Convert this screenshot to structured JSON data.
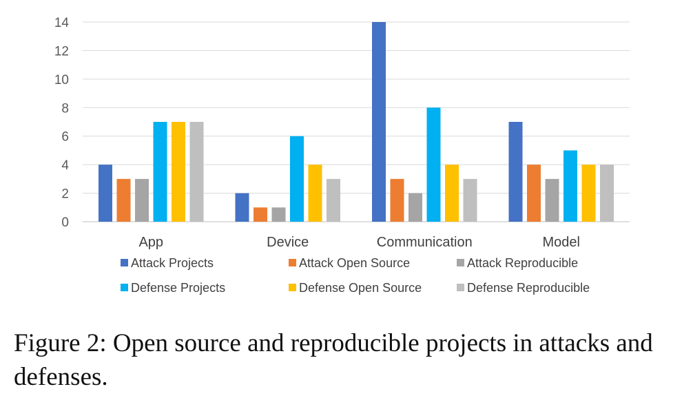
{
  "chart_data": {
    "type": "bar",
    "categories": [
      "App",
      "Device",
      "Communication",
      "Model"
    ],
    "series": [
      {
        "name": "Attack Projects",
        "color": "#4472C4",
        "values": [
          4,
          2,
          14,
          7
        ]
      },
      {
        "name": "Attack Open Source",
        "color": "#ED7D31",
        "values": [
          3,
          1,
          3,
          4
        ]
      },
      {
        "name": "Attack Reproducible",
        "color": "#A5A5A5",
        "values": [
          3,
          1,
          2,
          3
        ]
      },
      {
        "name": "Defense Projects",
        "color": "#00B0F0",
        "values": [
          7,
          6,
          8,
          5
        ]
      },
      {
        "name": "Defense Open Source",
        "color": "#FFC000",
        "values": [
          7,
          4,
          4,
          4
        ]
      },
      {
        "name": "Defense Reproducible",
        "color": "#BFBFBF",
        "values": [
          7,
          3,
          3,
          4
        ]
      }
    ],
    "ylim": [
      0,
      14
    ],
    "yticks": [
      0,
      2,
      4,
      6,
      8,
      10,
      12,
      14
    ],
    "grid": true,
    "legend_position": "bottom"
  },
  "caption": "Figure 2: Open source and reproducible projects in attacks and defenses."
}
